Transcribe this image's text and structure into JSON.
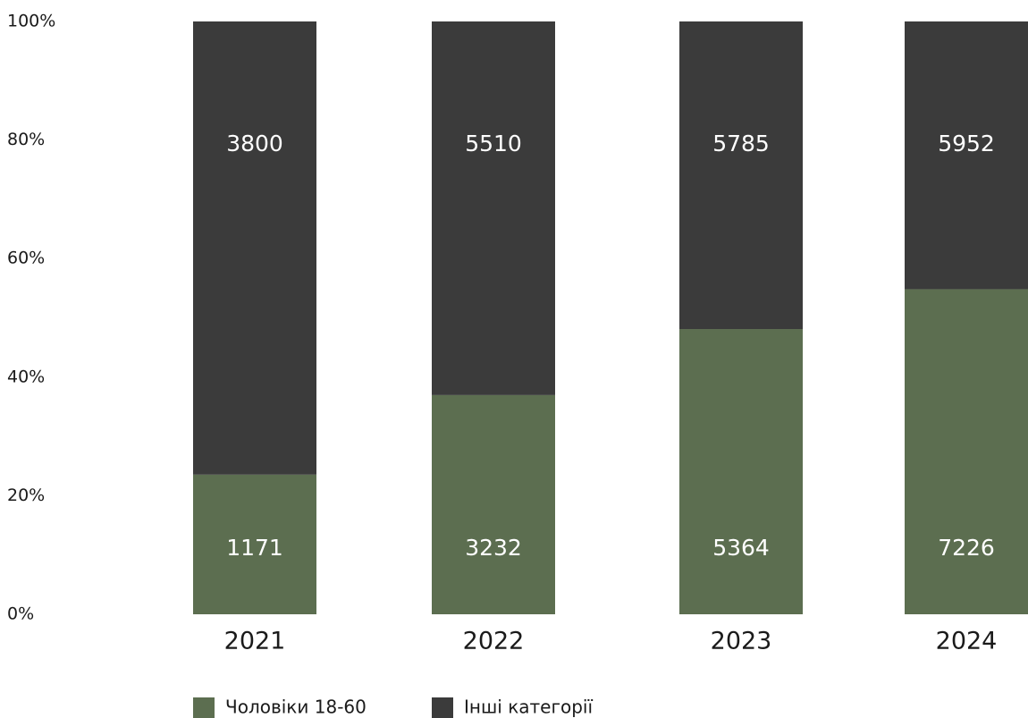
{
  "chart_data": {
    "type": "bar",
    "stacking": "percent",
    "categories": [
      "2021",
      "2022",
      "2023",
      "2024"
    ],
    "series": [
      {
        "name": "Чоловіки 18-60",
        "color": "#5c6e50",
        "values": [
          1171,
          3232,
          5364,
          7226
        ]
      },
      {
        "name": "Інші категорії",
        "color": "#3b3b3b",
        "values": [
          3800,
          5510,
          5785,
          5952
        ]
      }
    ],
    "ylim": [
      0,
      100
    ],
    "yticks": [
      {
        "value": 0,
        "label": "0%"
      },
      {
        "value": 20,
        "label": "20%"
      },
      {
        "value": 40,
        "label": "40%"
      },
      {
        "value": 60,
        "label": "60%"
      },
      {
        "value": 80,
        "label": "80%"
      },
      {
        "value": 100,
        "label": "100%"
      }
    ],
    "grid": false
  }
}
